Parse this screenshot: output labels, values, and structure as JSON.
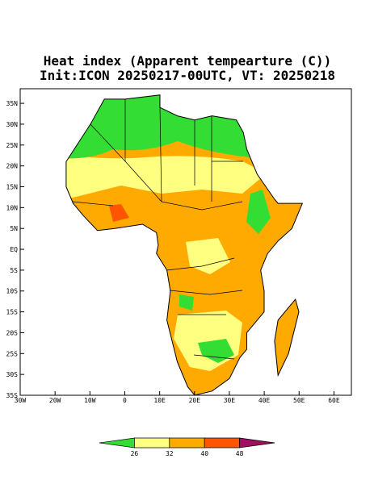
{
  "chart_data": {
    "type": "map",
    "title": "Heat index (Apparent tempearture (C))",
    "subtitle": "Init:ICON 20250217-00UTC, VT: 20250218",
    "xlim": [
      -30,
      65
    ],
    "ylim": [
      -35,
      38.5
    ],
    "xticks": [
      {
        "value": -30,
        "label": "30W"
      },
      {
        "value": -20,
        "label": "20W"
      },
      {
        "value": -10,
        "label": "10W"
      },
      0,
      {
        "value": 10,
        "label": "10E"
      },
      {
        "value": 20,
        "label": "20E"
      },
      {
        "value": 30,
        "label": "30E"
      },
      {
        "value": 40,
        "label": "40E"
      },
      {
        "value": 50,
        "label": "50E"
      },
      {
        "value": 60,
        "label": "60E"
      }
    ],
    "yticks": [
      {
        "value": 35,
        "label": "35N"
      },
      {
        "value": 30,
        "label": "30N"
      },
      {
        "value": 25,
        "label": "25N"
      },
      {
        "value": 20,
        "label": "20N"
      },
      {
        "value": 15,
        "label": "15N"
      },
      {
        "value": 10,
        "label": "10N"
      },
      {
        "value": 5,
        "label": "5N"
      },
      {
        "value": 0,
        "label": "EQ"
      },
      {
        "value": -5,
        "label": "5S"
      },
      {
        "value": -10,
        "label": "10S"
      },
      {
        "value": -15,
        "label": "15S"
      },
      {
        "value": -20,
        "label": "20S"
      },
      {
        "value": -25,
        "label": "25S"
      },
      {
        "value": -30,
        "label": "30S"
      },
      {
        "value": -35,
        "label": "35S"
      }
    ],
    "colorbar": {
      "levels": [
        26,
        32,
        40,
        48
      ],
      "colors": [
        "#33dd33",
        "#ffff80",
        "#ffaa00",
        "#ff5500",
        "#a01060"
      ]
    }
  }
}
